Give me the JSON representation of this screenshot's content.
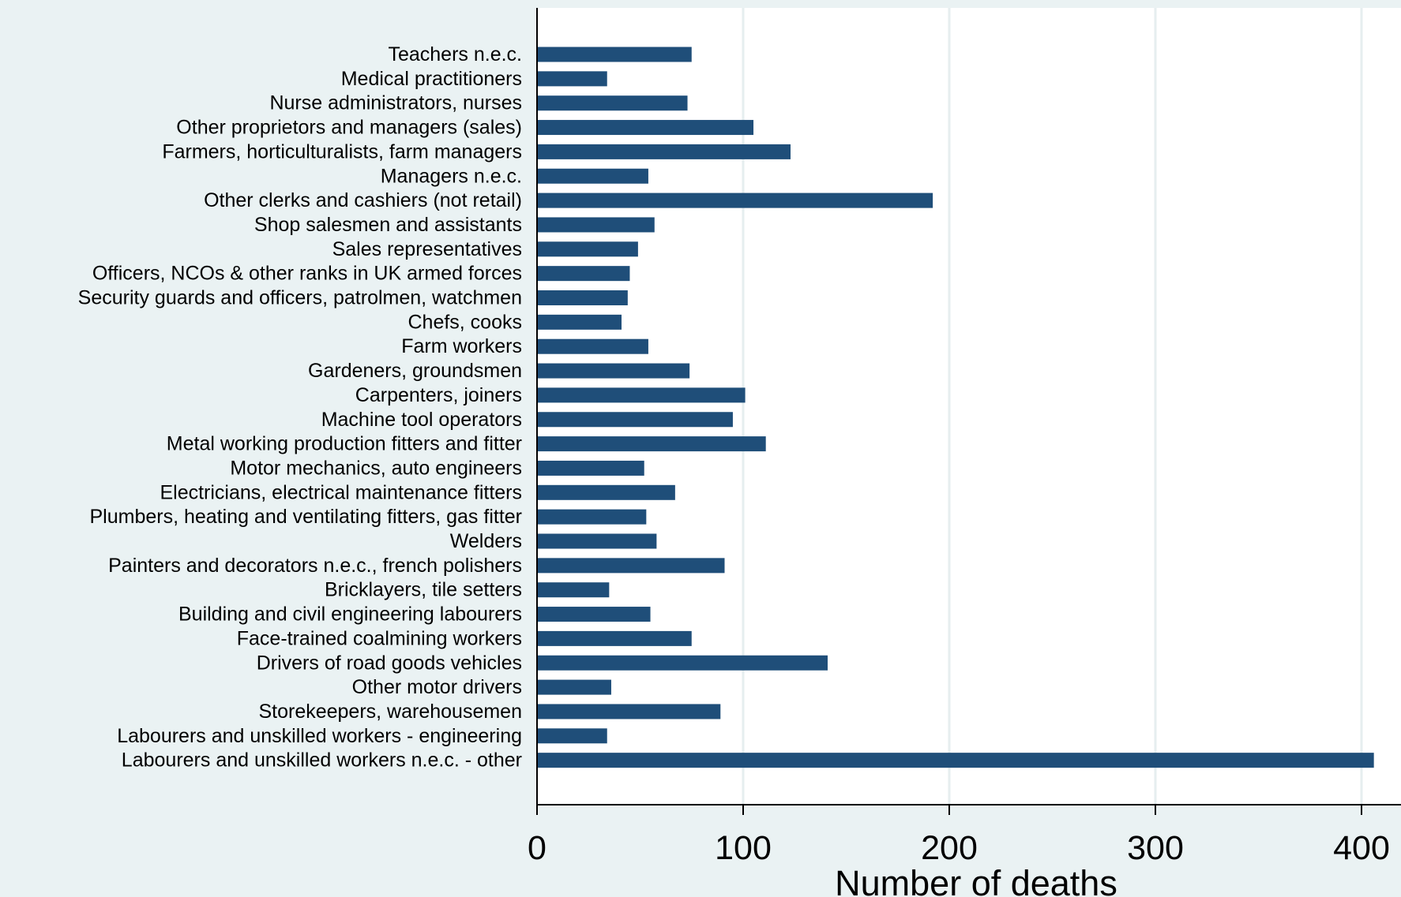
{
  "chart_data": {
    "type": "bar",
    "orientation": "horizontal",
    "categories": [
      "Teachers n.e.c.",
      "Medical practitioners",
      "Nurse administrators, nurses",
      "Other proprietors and managers (sales)",
      "Farmers, horticulturalists, farm managers",
      "Managers n.e.c.",
      "Other clerks and cashiers (not retail)",
      "Shop salesmen and assistants",
      "Sales representatives",
      "Officers, NCOs & other ranks in UK armed forces",
      "Security guards and officers, patrolmen, watchmen",
      "Chefs, cooks",
      "Farm workers",
      "Gardeners, groundsmen",
      "Carpenters, joiners",
      "Machine tool operators",
      "Metal working production fitters and fitter",
      "Motor mechanics, auto engineers",
      "Electricians, electrical maintenance fitters",
      "Plumbers, heating and ventilating fitters, gas fitter",
      "Welders",
      "Painters and decorators n.e.c., french polishers",
      "Bricklayers, tile setters",
      "Building and civil engineering labourers",
      "Face-trained coalmining workers",
      "Drivers of road goods vehicles",
      "Other motor drivers",
      "Storekeepers, warehousemen",
      "Labourers and unskilled workers - engineering",
      "Labourers and unskilled workers n.e.c. - other"
    ],
    "values": [
      75,
      34,
      73,
      105,
      123,
      54,
      192,
      57,
      49,
      45,
      44,
      41,
      54,
      74,
      101,
      95,
      111,
      52,
      67,
      53,
      58,
      91,
      35,
      55,
      75,
      141,
      36,
      89,
      34,
      406
    ],
    "xlabel": "Number of deaths",
    "xlim": [
      0,
      410
    ],
    "xticks": [
      0,
      100,
      200,
      300,
      400
    ],
    "grid": "vertical",
    "bar_color": "#1f4e79",
    "background_color": "#eaf2f3",
    "plot_background_color": "#ffffff",
    "grid_color": "#e6eeef"
  }
}
